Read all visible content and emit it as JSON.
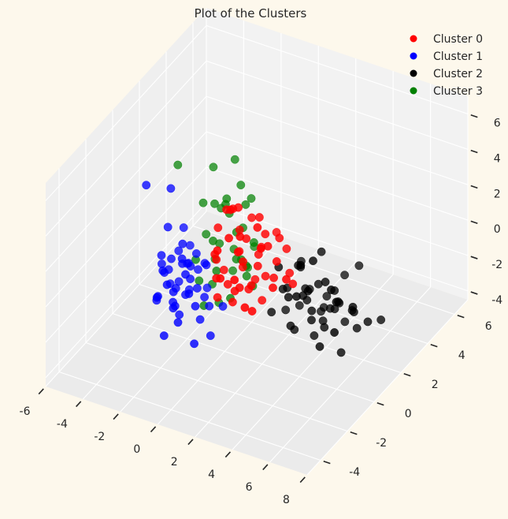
{
  "chart_data": {
    "type": "scatter",
    "projection": "3d",
    "title": "Plot of the Clusters",
    "xlabel": "",
    "ylabel": "",
    "zlabel": "",
    "grid": true,
    "legend_position": "top-right",
    "axes": {
      "x": {
        "range": [
          -6,
          8
        ],
        "ticks": [
          "-6",
          "-4",
          "-2",
          "0",
          "2",
          "4",
          "6",
          "8"
        ]
      },
      "y": {
        "range": [
          -5,
          7
        ],
        "ticks": [
          "-4",
          "-2",
          "0",
          "2",
          "4",
          "6"
        ]
      },
      "z": {
        "range": [
          -4.5,
          7
        ],
        "ticks": [
          "-4",
          "-2",
          "0",
          "2",
          "4",
          "6"
        ]
      }
    },
    "series": [
      {
        "name": "Cluster 0",
        "color": "#ff0000",
        "points": [
          [
            1.1,
            -1.1,
            4.8
          ],
          [
            0.6,
            -0.7,
            4.3
          ],
          [
            1.9,
            -1.5,
            3.9
          ],
          [
            0.3,
            0.2,
            3.5
          ],
          [
            2.4,
            -0.9,
            4.1
          ],
          [
            1.5,
            0.5,
            3.2
          ],
          [
            0.9,
            -1.8,
            3.0
          ],
          [
            2.1,
            0.1,
            2.8
          ],
          [
            0.0,
            -0.5,
            2.9
          ],
          [
            1.3,
            -0.2,
            2.5
          ],
          [
            2.8,
            -1.2,
            3.3
          ],
          [
            0.4,
            -1.3,
            2.2
          ],
          [
            1.7,
            -1.0,
            2.0
          ],
          [
            2.5,
            0.6,
            2.3
          ],
          [
            0.8,
            0.9,
            2.6
          ],
          [
            1.0,
            -0.4,
            1.8
          ],
          [
            2.2,
            -0.6,
            1.6
          ],
          [
            0.2,
            -0.9,
            1.5
          ],
          [
            1.6,
            0.3,
            1.3
          ],
          [
            0.7,
            -1.6,
            1.2
          ],
          [
            3.0,
            -0.3,
            1.9
          ],
          [
            1.2,
            -2.0,
            1.7
          ],
          [
            2.6,
            1.0,
            1.4
          ],
          [
            0.5,
            0.4,
            1.0
          ],
          [
            1.8,
            -1.4,
            0.9
          ],
          [
            2.0,
            -0.8,
            0.6
          ],
          [
            0.9,
            0.1,
            0.5
          ],
          [
            1.4,
            -1.2,
            0.4
          ],
          [
            2.7,
            -0.1,
            0.7
          ],
          [
            0.1,
            -0.2,
            0.3
          ],
          [
            3.3,
            -1.0,
            1.1
          ],
          [
            1.1,
            1.2,
            0.8
          ],
          [
            2.3,
            -1.7,
            0.2
          ],
          [
            0.6,
            -0.6,
            0.0
          ],
          [
            1.9,
            0.4,
            0.1
          ],
          [
            2.9,
            0.8,
            0.3
          ],
          [
            1.5,
            -0.3,
            -0.2
          ],
          [
            0.4,
            -1.1,
            -0.4
          ],
          [
            2.4,
            -1.3,
            -0.3
          ],
          [
            1.0,
            -0.8,
            -0.7
          ],
          [
            3.5,
            0.2,
            0.4
          ],
          [
            1.7,
            1.5,
            1.6
          ],
          [
            0.3,
            0.7,
            1.9
          ],
          [
            2.1,
            -2.2,
            2.1
          ],
          [
            1.3,
            -1.5,
            3.6
          ],
          [
            2.6,
            -0.4,
            2.7
          ],
          [
            0.8,
            -0.1,
            4.0
          ],
          [
            3.8,
            -0.7,
            1.5
          ],
          [
            1.2,
            0.6,
            -0.5
          ],
          [
            2.0,
            0.0,
            -0.9
          ]
        ]
      },
      {
        "name": "Cluster 1",
        "color": "#0000ff",
        "points": [
          [
            -4.2,
            0.0,
            3.4
          ],
          [
            -3.6,
            1.0,
            2.6
          ],
          [
            -3.4,
            0.5,
            0.9
          ],
          [
            -3.2,
            1.4,
            0.2
          ],
          [
            -3.0,
            0.2,
            -0.5
          ],
          [
            -2.9,
            0.9,
            -0.2
          ],
          [
            -3.1,
            -0.3,
            -0.8
          ],
          [
            -2.7,
            0.6,
            -1.0
          ],
          [
            -3.3,
            0.1,
            -1.3
          ],
          [
            -2.8,
            1.2,
            -1.5
          ],
          [
            -2.5,
            0.3,
            -0.4
          ],
          [
            -3.5,
            0.7,
            -1.7
          ],
          [
            -2.6,
            -0.2,
            -1.9
          ],
          [
            -3.0,
            1.6,
            -0.9
          ],
          [
            -2.4,
            0.8,
            -1.2
          ],
          [
            -3.2,
            -0.6,
            -2.1
          ],
          [
            -2.9,
            0.4,
            -2.3
          ],
          [
            -2.3,
            1.1,
            -0.7
          ],
          [
            -3.4,
            1.3,
            -1.1
          ],
          [
            -2.7,
            -0.1,
            -2.6
          ],
          [
            -2.2,
            0.5,
            -1.6
          ],
          [
            -3.1,
            0.9,
            -2.4
          ],
          [
            -2.5,
            1.5,
            -2.0
          ],
          [
            -2.8,
            -0.4,
            -1.4
          ],
          [
            -3.6,
            0.3,
            -0.6
          ],
          [
            -2.1,
            0.0,
            -0.9
          ],
          [
            -2.6,
            0.7,
            -2.8
          ],
          [
            -3.0,
            -0.8,
            -1.8
          ],
          [
            -2.0,
            1.3,
            -1.3
          ],
          [
            -3.3,
            1.8,
            -2.2
          ],
          [
            -2.4,
            -0.5,
            -2.5
          ],
          [
            -1.9,
            0.6,
            -2.1
          ],
          [
            -2.8,
            0.2,
            -3.1
          ],
          [
            -2.2,
            1.7,
            -1.8
          ],
          [
            -3.5,
            -0.2,
            -2.7
          ],
          [
            -1.7,
            -0.3,
            -1.6
          ],
          [
            -2.5,
            0.1,
            -3.4
          ],
          [
            -1.8,
            1.0,
            -2.9
          ],
          [
            -2.9,
            1.4,
            -3.2
          ],
          [
            -2.0,
            -0.7,
            -3.0
          ],
          [
            -1.6,
            0.4,
            -3.6
          ],
          [
            -2.3,
            1.9,
            -3.3
          ],
          [
            -1.5,
            -0.1,
            -2.4
          ],
          [
            -2.6,
            -0.9,
            -3.8
          ],
          [
            -1.4,
            0.8,
            -3.1
          ],
          [
            -1.2,
            -0.6,
            -4.0
          ],
          [
            -0.9,
            0.2,
            -4.1
          ],
          [
            -3.8,
            0.6,
            -1.4
          ],
          [
            -3.7,
            1.1,
            -2.9
          ],
          [
            -1.1,
            1.4,
            -3.5
          ]
        ]
      },
      {
        "name": "Cluster 2",
        "color": "#000000",
        "points": [
          [
            3.0,
            1.5,
            0.2
          ],
          [
            2.5,
            2.0,
            -0.4
          ],
          [
            3.6,
            1.2,
            -0.8
          ],
          [
            2.2,
            2.6,
            -1.1
          ],
          [
            4.1,
            1.8,
            -0.6
          ],
          [
            3.3,
            2.4,
            -1.5
          ],
          [
            2.7,
            1.0,
            -1.3
          ],
          [
            4.5,
            2.2,
            -1.9
          ],
          [
            1.9,
            1.7,
            -1.7
          ],
          [
            3.8,
            2.9,
            -2.1
          ],
          [
            2.9,
            2.1,
            -2.3
          ],
          [
            4.9,
            1.5,
            -1.2
          ],
          [
            2.4,
            3.0,
            -2.6
          ],
          [
            3.5,
            1.6,
            -2.8
          ],
          [
            4.2,
            2.7,
            -2.5
          ],
          [
            1.7,
            2.3,
            -2.2
          ],
          [
            3.1,
            3.3,
            -3.0
          ],
          [
            5.2,
            2.4,
            -2.4
          ],
          [
            2.6,
            1.3,
            -3.2
          ],
          [
            3.9,
            2.0,
            -3.4
          ],
          [
            4.6,
            3.1,
            -3.1
          ],
          [
            2.0,
            2.8,
            -3.5
          ],
          [
            3.4,
            2.6,
            -3.7
          ],
          [
            5.5,
            1.9,
            -1.6
          ],
          [
            2.8,
            3.5,
            -3.9
          ],
          [
            4.3,
            1.1,
            -3.6
          ],
          [
            3.7,
            3.8,
            -2.0
          ],
          [
            1.5,
            1.4,
            -2.9
          ],
          [
            5.0,
            2.9,
            -3.8
          ],
          [
            2.3,
            2.0,
            -4.1
          ],
          [
            4.0,
            3.4,
            -4.2
          ],
          [
            3.2,
            0.9,
            -1.0
          ],
          [
            5.8,
            2.6,
            -2.9
          ],
          [
            1.8,
            3.2,
            -1.4
          ],
          [
            4.7,
            1.4,
            -0.5
          ],
          [
            3.6,
            2.2,
            0.6
          ],
          [
            2.1,
            1.1,
            0.1
          ],
          [
            6.0,
            3.3,
            -3.3
          ],
          [
            4.4,
            3.9,
            -1.3
          ],
          [
            2.5,
            3.7,
            -4.4
          ],
          [
            3.0,
            2.5,
            -4.6
          ],
          [
            5.3,
            0.8,
            -2.2
          ],
          [
            1.4,
            2.6,
            -3.8
          ],
          [
            3.8,
            1.3,
            0.9
          ],
          [
            4.8,
            2.0,
            -4.5
          ],
          [
            2.9,
            1.8,
            -1.8
          ],
          [
            3.5,
            3.0,
            -3.3
          ],
          [
            4.1,
            2.5,
            -2.7
          ],
          [
            2.6,
            2.4,
            -2.0
          ],
          [
            3.3,
            1.9,
            -2.6
          ]
        ]
      },
      {
        "name": "Cluster 3",
        "color": "#008000",
        "points": [
          [
            -3.8,
            1.8,
            3.2
          ],
          [
            -2.4,
            2.5,
            3.0
          ],
          [
            -1.6,
            3.0,
            3.3
          ],
          [
            -1.0,
            2.6,
            2.4
          ],
          [
            -1.9,
            1.9,
            1.6
          ],
          [
            -1.4,
            2.3,
            0.9
          ],
          [
            -2.2,
            2.8,
            0.5
          ],
          [
            -0.8,
            2.0,
            0.3
          ],
          [
            -1.7,
            1.5,
            -0.1
          ],
          [
            -2.5,
            2.1,
            -0.5
          ],
          [
            -1.1,
            2.9,
            -0.3
          ],
          [
            -0.6,
            1.7,
            -0.9
          ],
          [
            -2.0,
            2.4,
            -1.1
          ],
          [
            -1.3,
            1.2,
            -1.4
          ],
          [
            -2.7,
            1.6,
            -1.6
          ],
          [
            -0.9,
            2.5,
            -1.7
          ],
          [
            -1.8,
            3.2,
            -2.0
          ],
          [
            -0.4,
            2.2,
            -2.2
          ],
          [
            -2.3,
            1.3,
            -2.4
          ],
          [
            -1.5,
            2.7,
            -2.7
          ],
          [
            -0.7,
            1.4,
            -2.9
          ],
          [
            -2.1,
            2.0,
            -3.1
          ],
          [
            -1.2,
            3.4,
            -3.0
          ],
          [
            -0.5,
            2.8,
            -3.3
          ],
          [
            -1.9,
            1.1,
            -3.5
          ],
          [
            -0.2,
            1.9,
            -1.3
          ],
          [
            -1.0,
            3.6,
            -1.9
          ],
          [
            -2.6,
            2.9,
            -2.6
          ],
          [
            -0.3,
            2.6,
            -0.6
          ],
          [
            -1.6,
            1.8,
            -3.8
          ],
          [
            -1.4,
            2.1,
            1.9
          ],
          [
            -0.8,
            3.1,
            1.3
          ],
          [
            -2.8,
            2.3,
            1.0
          ],
          [
            -1.1,
            1.6,
            2.1
          ],
          [
            -0.6,
            2.4,
            1.6
          ]
        ]
      }
    ]
  }
}
